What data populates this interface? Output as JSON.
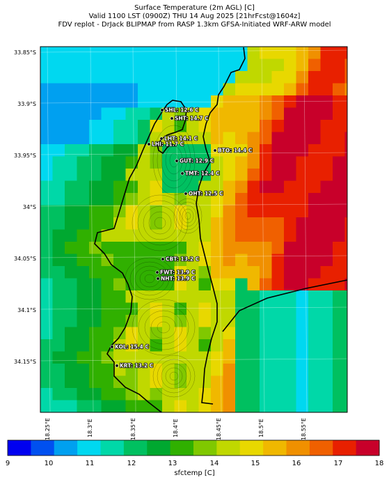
{
  "header": {
    "line1": "Surface Temperature (2m AGL) [C]",
    "line2": "Valid 1100 LST (0900Z) THU 14 Aug 2025 [21hrFcst@1604z]",
    "line3": "FDV replot - DrJack BLIPMAP from RASP 1.3km GFSA-Initiated WRF-ARW model"
  },
  "axes": {
    "lat_ticks": [
      "33.85°S",
      "33.9°S",
      "33.95°S",
      "34°S",
      "34.05°S",
      "34.1°S",
      "34.15°S"
    ],
    "lon_ticks": [
      "18.25°E",
      "18.3°E",
      "18.35°E",
      "18.4°E",
      "18.45°E",
      "18.5°E",
      "18.55°E"
    ]
  },
  "sites": [
    {
      "name": "SHL: 12.6 C",
      "temp": 12.6
    },
    {
      "name": "SHT: 14.7 C",
      "temp": 14.7
    },
    {
      "name": "LHT: 14.1 C",
      "temp": 14.1
    },
    {
      "name": "LHI: 11.7 C",
      "temp": 11.7
    },
    {
      "name": "BTO: 14.4 C",
      "temp": 14.4
    },
    {
      "name": "GUT: 12.9 C",
      "temp": 12.9
    },
    {
      "name": "TMT: 12.4 C",
      "temp": 12.4
    },
    {
      "name": "OHT: 12.5 C",
      "temp": 12.5
    },
    {
      "name": "CBT: 13.2 C",
      "temp": 13.2
    },
    {
      "name": "FWT: 13.9 C",
      "temp": 13.9
    },
    {
      "name": "NHT: 13.9 C",
      "temp": 13.9
    },
    {
      "name": "KOL: 15.4 C",
      "temp": 15.4
    },
    {
      "name": "KRT: 13.2 C",
      "temp": 13.2
    }
  ],
  "colorbar": {
    "title": "sfctemp [C]",
    "labels": [
      "9",
      "10",
      "11",
      "12",
      "13",
      "14",
      "15",
      "16",
      "17",
      "18"
    ],
    "colors": [
      "#0000f0",
      "#0050f0",
      "#00a0f0",
      "#00d8f0",
      "#00d8a8",
      "#00c060",
      "#00a830",
      "#30b000",
      "#80c800",
      "#c0d800",
      "#e8d800",
      "#f0b800",
      "#f09000",
      "#f06000",
      "#e82000",
      "#c8002a"
    ]
  }
}
